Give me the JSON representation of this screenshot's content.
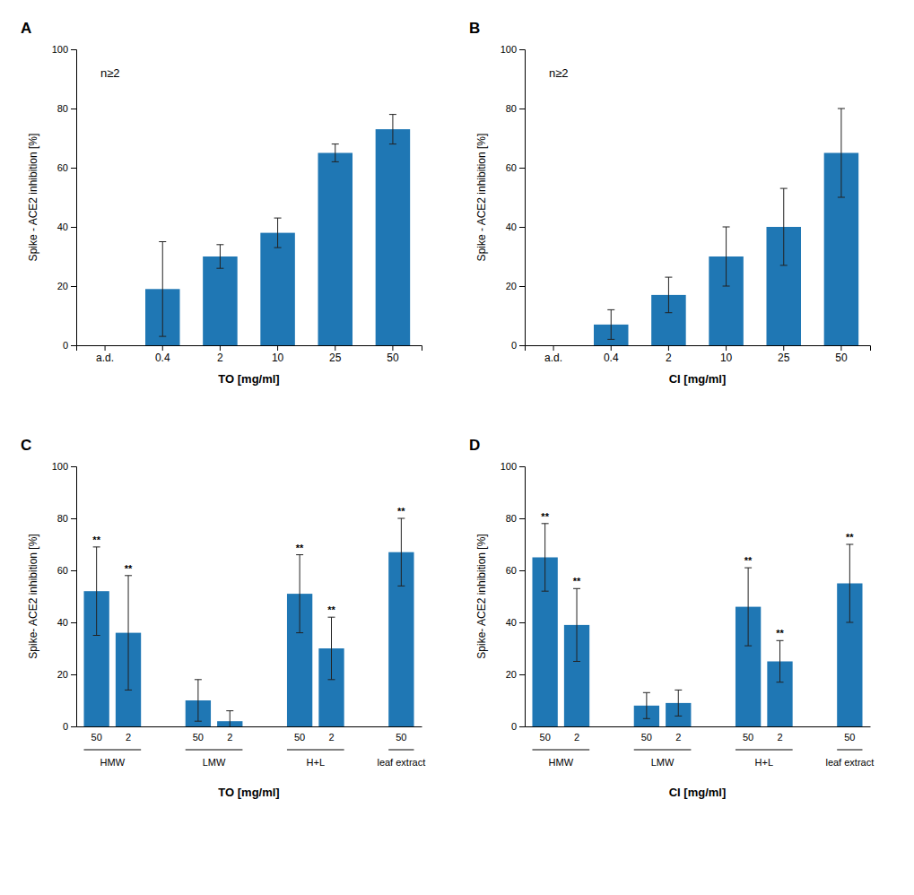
{
  "chart_data": [
    {
      "type": "bar",
      "title": "A",
      "categories": [
        "a.d.",
        "0.4",
        "2",
        "10",
        "25",
        "50"
      ],
      "values": [
        null,
        19,
        30,
        38,
        65,
        73
      ],
      "errors": [
        null,
        16,
        4,
        5,
        3,
        5
      ],
      "xlabel": "TO [mg/ml]",
      "ylabel": "Spike - ACE2 inhibition [%]",
      "ylim": [
        0,
        100
      ],
      "yticks": [
        0,
        20,
        40,
        60,
        80,
        100
      ],
      "annotation": "n≥2",
      "grid": false
    },
    {
      "type": "bar",
      "title": "B",
      "categories": [
        "a.d.",
        "0.4",
        "2",
        "10",
        "25",
        "50"
      ],
      "values": [
        null,
        7,
        17,
        30,
        40,
        65
      ],
      "errors": [
        null,
        5,
        6,
        10,
        13,
        15
      ],
      "xlabel": "CI [mg/ml]",
      "ylabel": "Spike - ACE2 inhibition [%]",
      "ylim": [
        0,
        100
      ],
      "yticks": [
        0,
        20,
        40,
        60,
        80,
        100
      ],
      "annotation": "n≥2",
      "grid": false
    },
    {
      "type": "bar",
      "title": "C",
      "groups": [
        "HMW",
        "LMW",
        "H+L",
        "leaf extract"
      ],
      "categories": [
        [
          "50",
          "2"
        ],
        [
          "50",
          "2"
        ],
        [
          "50",
          "2"
        ],
        [
          "50"
        ]
      ],
      "values": [
        [
          52,
          36
        ],
        [
          10,
          2
        ],
        [
          51,
          30
        ],
        [
          67
        ]
      ],
      "errors": [
        [
          17,
          22
        ],
        [
          8,
          4
        ],
        [
          15,
          12
        ],
        [
          13
        ]
      ],
      "annotations": [
        [
          "**",
          "**"
        ],
        [
          null,
          null
        ],
        [
          "**",
          "**"
        ],
        [
          "**"
        ]
      ],
      "xlabel": "TO [mg/ml]",
      "ylabel": "Spike- ACE2 inhibition [%]",
      "ylim": [
        0,
        100
      ],
      "yticks": [
        0,
        20,
        40,
        60,
        80,
        100
      ],
      "grid": false
    },
    {
      "type": "bar",
      "title": "D",
      "groups": [
        "HMW",
        "LMW",
        "H+L",
        "leaf extract"
      ],
      "categories": [
        [
          "50",
          "2"
        ],
        [
          "50",
          "2"
        ],
        [
          "50",
          "2"
        ],
        [
          "50"
        ]
      ],
      "values": [
        [
          65,
          39
        ],
        [
          8,
          9
        ],
        [
          46,
          25
        ],
        [
          55
        ]
      ],
      "errors": [
        [
          13,
          14
        ],
        [
          5,
          5
        ],
        [
          15,
          8
        ],
        [
          15
        ]
      ],
      "annotations": [
        [
          "**",
          "**"
        ],
        [
          null,
          null
        ],
        [
          "**",
          "**"
        ],
        [
          "**"
        ]
      ],
      "xlabel": "CI [mg/ml]",
      "ylabel": "Spike- ACE2 inhibition [%]",
      "ylim": [
        0,
        100
      ],
      "yticks": [
        0,
        20,
        40,
        60,
        80,
        100
      ],
      "grid": false
    }
  ]
}
